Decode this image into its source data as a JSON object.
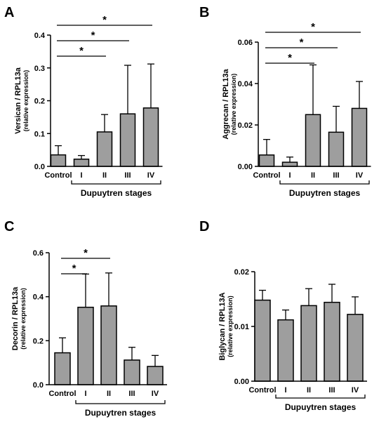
{
  "chart_data": [
    {
      "panel_label": "A",
      "type": "bar",
      "categories": [
        "Control",
        "I",
        "II",
        "III",
        "IV"
      ],
      "values": [
        0.035,
        0.022,
        0.105,
        0.16,
        0.178
      ],
      "error_upper": [
        0.063,
        0.033,
        0.158,
        0.308,
        0.312
      ],
      "ylabel": "Versican / RPL13a",
      "ylabel_sub": "(relative expression)",
      "xlabel": "Dupuytren stages",
      "ylim": [
        0,
        0.4
      ],
      "yticks": [
        "0.0",
        "0.1",
        "0.2",
        "0.3",
        "0.4"
      ],
      "significance": [
        {
          "from": 0,
          "to": 2,
          "label": "*"
        },
        {
          "from": 0,
          "to": 3,
          "label": "*"
        },
        {
          "from": 0,
          "to": 4,
          "label": "*"
        }
      ],
      "bar_color": "#9e9e9e"
    },
    {
      "panel_label": "B",
      "type": "bar",
      "categories": [
        "Control",
        "I",
        "II",
        "III",
        "IV"
      ],
      "values": [
        0.0055,
        0.002,
        0.025,
        0.0165,
        0.028
      ],
      "error_upper": [
        0.013,
        0.0045,
        0.049,
        0.029,
        0.041
      ],
      "ylabel": "Aggrecan / RPL13a",
      "ylabel_sub": "(relative expression)",
      "xlabel": "Dupuytren stages",
      "ylim": [
        0,
        0.06
      ],
      "yticks": [
        "0.00",
        "0.02",
        "0.04",
        "0.06"
      ],
      "significance": [
        {
          "from": 0,
          "to": 2,
          "label": "*"
        },
        {
          "from": 0,
          "to": 3,
          "label": "*"
        },
        {
          "from": 0,
          "to": 4,
          "label": "*"
        }
      ],
      "bar_color": "#9e9e9e"
    },
    {
      "panel_label": "C",
      "type": "bar",
      "categories": [
        "Control",
        "I",
        "II",
        "III",
        "IV"
      ],
      "values": [
        0.145,
        0.352,
        0.358,
        0.112,
        0.083
      ],
      "error_upper": [
        0.213,
        0.503,
        0.508,
        0.17,
        0.133
      ],
      "ylabel": "Decorin / RPL13a",
      "ylabel_sub": "(relative expression)",
      "xlabel": "Dupuytren stages",
      "ylim": [
        0,
        0.6
      ],
      "yticks": [
        "0.0",
        "0.2",
        "0.4",
        "0.6"
      ],
      "significance": [
        {
          "from": 0,
          "to": 1,
          "label": "*"
        },
        {
          "from": 0,
          "to": 2,
          "label": "*"
        }
      ],
      "bar_color": "#9e9e9e"
    },
    {
      "panel_label": "D",
      "type": "bar",
      "categories": [
        "Control",
        "I",
        "II",
        "III",
        "IV"
      ],
      "values": [
        0.0148,
        0.0112,
        0.0138,
        0.0144,
        0.0122
      ],
      "error_upper": [
        0.0166,
        0.013,
        0.0169,
        0.0177,
        0.0154
      ],
      "ylabel": "Biglycan / RPL13A",
      "ylabel_sub": "(relative expression)",
      "xlabel": "Dupuytren stages",
      "ylim": [
        0,
        0.02
      ],
      "yticks": [
        "0.00",
        "0.01",
        "0.02"
      ],
      "significance": [],
      "bar_color": "#9e9e9e"
    }
  ]
}
